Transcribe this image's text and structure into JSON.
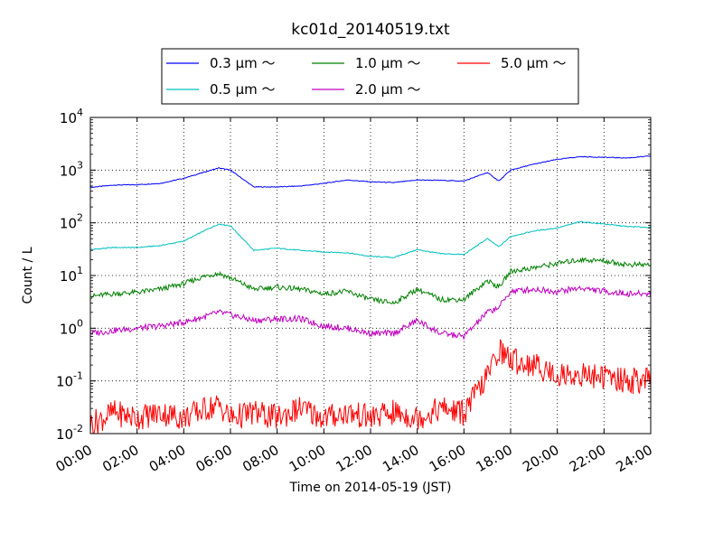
{
  "chart_data": {
    "type": "line",
    "title": "kc01d_20140519.txt",
    "xlabel": "Time on 2014-05-19 (JST)",
    "ylabel": "Count / L",
    "y_scale": "log",
    "ylim": [
      0.01,
      10000
    ],
    "y_ticks": [
      {
        "base": "10",
        "exp": "-2"
      },
      {
        "base": "10",
        "exp": "-1"
      },
      {
        "base": "10",
        "exp": "0"
      },
      {
        "base": "10",
        "exp": "1"
      },
      {
        "base": "10",
        "exp": "2"
      },
      {
        "base": "10",
        "exp": "3"
      },
      {
        "base": "10",
        "exp": "4"
      }
    ],
    "xlim": [
      "00:00",
      "24:00"
    ],
    "x_ticks": [
      "00:00",
      "02:00",
      "04:00",
      "06:00",
      "08:00",
      "10:00",
      "12:00",
      "14:00",
      "16:00",
      "18:00",
      "20:00",
      "22:00",
      "24:00"
    ],
    "grid": true,
    "legend_position": "top-center, above plot",
    "x": [
      "00:00",
      "01:00",
      "02:00",
      "03:00",
      "04:00",
      "05:00",
      "05:30",
      "06:00",
      "07:00",
      "08:00",
      "09:00",
      "10:00",
      "11:00",
      "12:00",
      "13:00",
      "14:00",
      "15:00",
      "16:00",
      "17:00",
      "17:30",
      "18:00",
      "19:00",
      "20:00",
      "21:00",
      "22:00",
      "23:00",
      "24:00"
    ],
    "series": [
      {
        "name": "0.3 μm ～",
        "color": "#0000ff",
        "values": [
          470,
          520,
          530,
          560,
          700,
          950,
          1100,
          1000,
          480,
          480,
          500,
          560,
          650,
          600,
          580,
          650,
          640,
          620,
          900,
          620,
          1000,
          1300,
          1600,
          1800,
          1750,
          1700,
          1850
        ]
      },
      {
        "name": "0.5 μm ～",
        "color": "#00bfbf",
        "values": [
          31,
          34,
          34,
          37,
          45,
          75,
          95,
          88,
          30,
          33,
          30,
          28,
          27,
          23,
          22,
          31,
          26,
          25,
          50,
          35,
          55,
          70,
          80,
          105,
          95,
          85,
          82
        ]
      },
      {
        "name": "1.0 μm ～",
        "color": "#008000",
        "values": [
          4,
          4.5,
          4.8,
          5.5,
          7,
          10,
          11,
          9,
          5.5,
          6,
          5.5,
          4.5,
          5,
          3.5,
          3,
          5.5,
          3.5,
          3.5,
          8,
          6,
          12,
          14,
          17,
          20,
          19,
          16,
          16
        ]
      },
      {
        "name": "2.0 μm ～",
        "color": "#bf00bf",
        "values": [
          0.8,
          0.9,
          1.0,
          1.1,
          1.3,
          1.7,
          2.0,
          1.8,
          1.4,
          1.5,
          1.5,
          1.1,
          1.0,
          0.8,
          0.8,
          1.4,
          0.8,
          0.7,
          2.0,
          2.5,
          5.0,
          5.5,
          5.0,
          5.8,
          5.0,
          4.5,
          4.5
        ]
      },
      {
        "name": "5.0 μm ～",
        "color": "#ff0000",
        "values": [
          0.015,
          0.025,
          0.02,
          0.025,
          0.02,
          0.03,
          0.035,
          0.02,
          0.025,
          0.02,
          0.03,
          0.02,
          0.025,
          0.02,
          0.025,
          0.02,
          0.03,
          0.025,
          0.12,
          0.4,
          0.25,
          0.2,
          0.13,
          0.13,
          0.12,
          0.1,
          0.1
        ]
      }
    ]
  }
}
